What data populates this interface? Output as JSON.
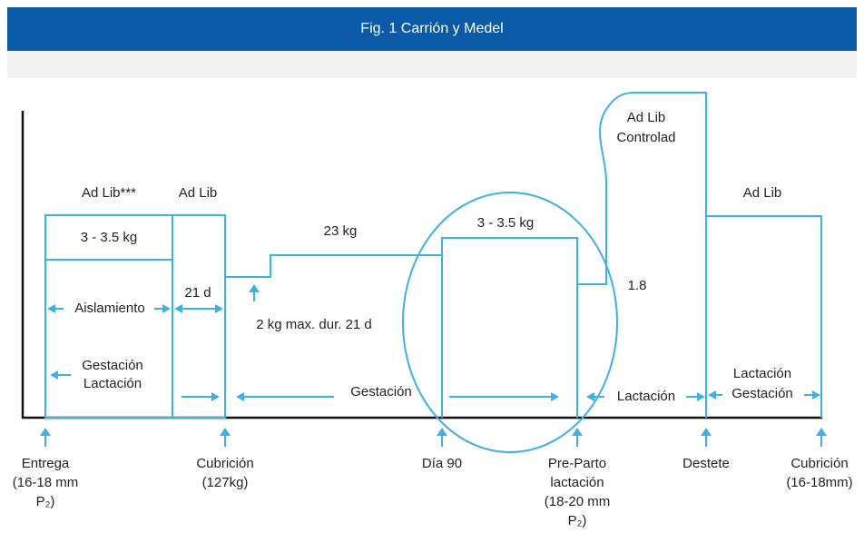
{
  "header": {
    "title": "Fig. 1 Carrión y Medel"
  },
  "labels": {
    "ad_lib_1": "Ad Lib***",
    "ad_lib_2": "Ad Lib",
    "kg_1": "3 - 3.5 kg",
    "kg_23": "23 kg",
    "kg_2": "3 - 3.5 kg",
    "ad_lib_controlad": [
      "Ad Lib",
      "Controlad"
    ],
    "value_18": "1.8",
    "ad_lib_3": "Ad Lib",
    "aislamiento": "Aislamiento",
    "d21": "21 d",
    "max": "2 kg max. dur. 21 d",
    "gestacion_lactacion": [
      "Gestación",
      "Lactación"
    ],
    "gestacion": "Gestación",
    "lactacion": "Lactación",
    "lactacion_gestacion": [
      "Lactación",
      "Gestación"
    ]
  },
  "timeline": [
    {
      "lines": [
        "Entrega",
        "(16-18 mm",
        "P₂)"
      ]
    },
    {
      "lines": [
        "Cubrición",
        "(127kg)"
      ]
    },
    {
      "lines": [
        "Día 90"
      ]
    },
    {
      "lines": [
        "Pre-Parto",
        "lactación",
        "(18-20 mm",
        "P₂)"
      ]
    },
    {
      "lines": [
        "Destete"
      ]
    },
    {
      "lines": [
        "Cubrición",
        "(16-18mm)"
      ]
    }
  ]
}
